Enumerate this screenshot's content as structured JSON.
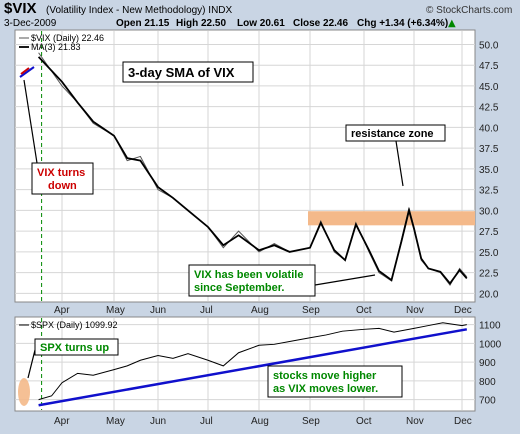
{
  "header": {
    "symbol": "$VIX",
    "name": "(Volatility Index - New Methodology) INDX",
    "watermark": "© StockCharts.com",
    "date": "3-Dec-2009",
    "open": "Open 21.15",
    "high": "High 22.50",
    "low": "Low 20.61",
    "close": "Close 22.46",
    "chg": "Chg +1.34 (+6.34%)",
    "chg_arrow": "▲"
  },
  "colors": {
    "background": "#c9d5e4",
    "panel": "#ffffff",
    "price_line": "#555555",
    "ma_line": "#000000",
    "resistance_zone": "#f4b98a",
    "trendline": "#1010cc",
    "red_text": "#cc0000",
    "green_text": "#008800",
    "dashed_marker": "#008800"
  },
  "annotations": {
    "sma_title": "3-day SMA of VIX",
    "resistance": "resistance zone",
    "vix_turns_1": "VIX turns",
    "vix_turns_2": "down",
    "volatile_1": "VIX has been volatile",
    "volatile_2": "since September.",
    "spx_turns": "SPX turns up",
    "stocks_1": "stocks move higher",
    "stocks_2": "as VIX moves lower."
  },
  "chart_data": [
    {
      "type": "line",
      "legend": [
        "$VIX (Daily) 22.46",
        "MA(3) 21.83"
      ],
      "x_tick_labels": [
        "Apr",
        "May",
        "Jun",
        "Jul",
        "Aug",
        "Sep",
        "Oct",
        "Nov",
        "Dec"
      ],
      "y_tick_labels": [
        "20.0",
        "22.5",
        "25.0",
        "27.5",
        "30.0",
        "32.5",
        "35.0",
        "37.5",
        "40.0",
        "42.5",
        "45.0",
        "47.5",
        "50.0"
      ],
      "ylim": [
        19.2,
        51.5
      ],
      "resistance_zone": [
        28.2,
        29.9
      ],
      "x_month_index": [
        -0.45,
        0.0,
        0.3,
        0.6,
        1.0,
        1.3,
        1.6,
        2.0,
        2.3,
        2.6,
        3.0,
        3.3,
        3.6,
        4.0,
        4.3,
        4.6,
        5.0,
        5.2,
        5.45,
        5.65,
        5.85,
        6.1,
        6.3,
        6.55,
        6.75,
        6.9,
        7.0,
        7.15,
        7.3,
        7.55,
        7.75,
        7.95,
        8.1
      ],
      "series": [
        {
          "name": "$VIX (Daily) 22.46",
          "values": [
            49.0,
            45.0,
            43.0,
            40.5,
            39.0,
            36.0,
            36.5,
            32.5,
            31.5,
            30.0,
            28.0,
            25.5,
            27.5,
            25.0,
            26.0,
            25.0,
            25.5,
            28.7,
            25.0,
            24.0,
            28.5,
            25.0,
            22.5,
            21.5,
            26.5,
            30.3,
            28.0,
            24.0,
            23.0,
            22.5,
            21.0,
            23.0,
            22.0
          ]
        },
        {
          "name": "MA(3) 21.83",
          "values": [
            48.5,
            45.5,
            43.0,
            40.7,
            39.0,
            36.3,
            36.0,
            32.8,
            31.5,
            30.0,
            28.0,
            25.8,
            27.0,
            25.2,
            25.8,
            25.0,
            25.5,
            28.5,
            25.2,
            24.0,
            28.3,
            25.2,
            22.7,
            21.6,
            26.3,
            30.0,
            27.8,
            24.2,
            23.0,
            22.6,
            21.2,
            22.8,
            21.8
          ]
        }
      ]
    },
    {
      "type": "line",
      "legend": [
        "$SPX (Daily) 1099.92"
      ],
      "y_tick_labels": [
        "700",
        "800",
        "900",
        "1000",
        "1100"
      ],
      "ylim": [
        650,
        1130
      ],
      "x_month_index": [
        -0.45,
        -0.2,
        0.0,
        0.3,
        0.6,
        1.0,
        1.3,
        1.6,
        2.0,
        2.3,
        2.6,
        3.0,
        3.3,
        3.6,
        4.0,
        4.3,
        4.6,
        5.0,
        5.3,
        5.6,
        6.0,
        6.3,
        6.6,
        7.0,
        7.3,
        7.6,
        8.0,
        8.1
      ],
      "series": [
        {
          "name": "$SPX (Daily) 1099.92",
          "values": [
            700,
            720,
            790,
            840,
            830,
            860,
            880,
            910,
            935,
            920,
            945,
            910,
            880,
            950,
            990,
            995,
            1010,
            1030,
            1045,
            1065,
            1075,
            1080,
            1060,
            1080,
            1095,
            1110,
            1095,
            1100
          ]
        }
      ],
      "trendline": [
        [
          -0.45,
          670
        ],
        [
          8.1,
          1075
        ]
      ]
    }
  ]
}
